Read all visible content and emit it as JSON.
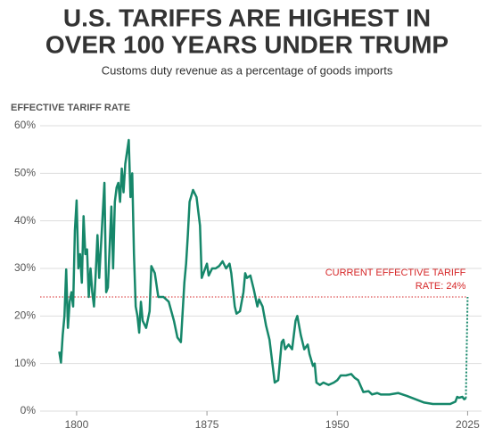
{
  "chart_data": {
    "type": "line",
    "title": [
      "U.S. TARIFFS ARE HIGHEST IN",
      "OVER 100 YEARS UNDER TRUMP"
    ],
    "subtitle": "Customs duty revenue as a percentage of goods imports",
    "y_label": "EFFECTIVE TARIFF RATE",
    "x": [
      1790,
      1791,
      1792,
      1793,
      1794,
      1795,
      1796,
      1797,
      1798,
      1799,
      1800,
      1801,
      1802,
      1803,
      1804,
      1805,
      1806,
      1807,
      1808,
      1809,
      1810,
      1811,
      1812,
      1813,
      1816,
      1817,
      1818,
      1820,
      1821,
      1822,
      1823,
      1824,
      1825,
      1826,
      1827,
      1828,
      1830,
      1831,
      1832,
      1833,
      1834,
      1835,
      1836,
      1837,
      1838,
      1840,
      1842,
      1843,
      1845,
      1847,
      1850,
      1853,
      1856,
      1858,
      1860,
      1862,
      1863,
      1864,
      1865,
      1867,
      1869,
      1871,
      1872,
      1874,
      1875,
      1876,
      1878,
      1880,
      1882,
      1884,
      1886,
      1888,
      1889,
      1891,
      1892,
      1894,
      1896,
      1897,
      1898,
      1900,
      1902,
      1904,
      1905,
      1907,
      1909,
      1911,
      1913,
      1914,
      1916,
      1918,
      1919,
      1920,
      1922,
      1924,
      1926,
      1927,
      1929,
      1931,
      1933,
      1934,
      1936,
      1937,
      1938,
      1940,
      1942,
      1945,
      1948,
      1950,
      1952,
      1955,
      1958,
      1960,
      1962,
      1965,
      1968,
      1970,
      1973,
      1975,
      1980,
      1985,
      1990,
      1995,
      2000,
      2005,
      2010,
      2015,
      2018,
      2019,
      2020,
      2022,
      2023,
      2024
    ],
    "series": [
      {
        "name": "Effective tariff rate",
        "color": "#16876a",
        "values": [
          12.5,
          10.2,
          16,
          20,
          29.8,
          17.5,
          23,
          25,
          22,
          38,
          44.3,
          30,
          33,
          27,
          41,
          33,
          34,
          24,
          30,
          25,
          22,
          29,
          37,
          28,
          48,
          25,
          26,
          43,
          30,
          44,
          47,
          48,
          44,
          51,
          46,
          52,
          57,
          45,
          50,
          33,
          22,
          20,
          16.5,
          23,
          19,
          17.5,
          21,
          30.5,
          29,
          24,
          24,
          23,
          19,
          15.5,
          14.5,
          27,
          31,
          37,
          44,
          46.5,
          45,
          39,
          28,
          30,
          31,
          28.5,
          30,
          30,
          30.5,
          31.5,
          30,
          31,
          29,
          22,
          20.5,
          21,
          25,
          29,
          28,
          28.5,
          25.5,
          22,
          23.5,
          22,
          18,
          15,
          9,
          6,
          6.5,
          14.5,
          15,
          13,
          14,
          13,
          19,
          20,
          16,
          13,
          14,
          12,
          9.5,
          10,
          6,
          5.5,
          6,
          5.5,
          6,
          6.5,
          7.5,
          7.5,
          7.8,
          7,
          6.5,
          4,
          4.2,
          3.5,
          3.8,
          3.5,
          3.5,
          3.8,
          3.2,
          2.5,
          1.8,
          1.5,
          1.5,
          1.5,
          2,
          3,
          2.8,
          3,
          2.5,
          2.7
        ]
      }
    ],
    "current": {
      "x": 2025,
      "value": 24,
      "color": "#d62728",
      "label": [
        "CURRENT EFFECTIVE TARIFF",
        "RATE: 24%"
      ]
    },
    "xlim": [
      1779,
      2033
    ],
    "ylim": [
      0,
      60
    ],
    "xticks": [
      1800,
      1875,
      1950,
      2025
    ],
    "yticks": [
      {
        "value": 0,
        "label": "0%"
      },
      {
        "value": 10,
        "label": "10%"
      },
      {
        "value": 20,
        "label": "20%"
      },
      {
        "value": 30,
        "label": "30%"
      },
      {
        "value": 40,
        "label": "40%"
      },
      {
        "value": 50,
        "label": "50%"
      },
      {
        "value": 60,
        "label": "60%"
      }
    ],
    "grid": true
  }
}
